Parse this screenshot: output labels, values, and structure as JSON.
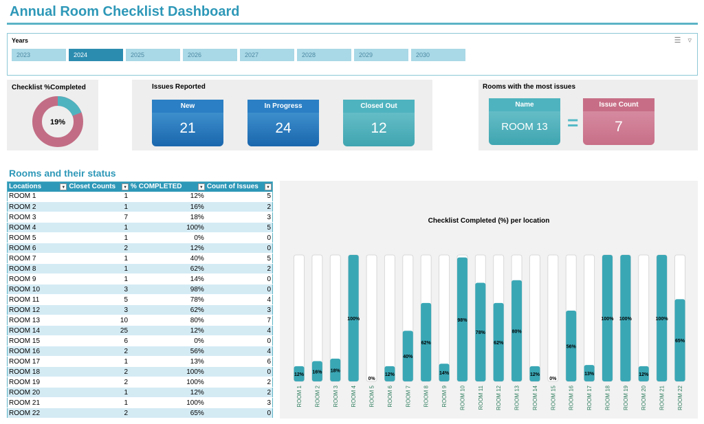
{
  "title": "Annual Room Checklist Dashboard",
  "slicer": {
    "title": "Years",
    "years": [
      "2023",
      "2024",
      "2025",
      "2026",
      "2027",
      "2028",
      "2029",
      "2030"
    ],
    "selected": "2024",
    "icons": [
      "multi-select-icon",
      "clear-filter-icon"
    ]
  },
  "checklist": {
    "title": "Checklist %Completed",
    "percent_label": "19%",
    "percent": 19,
    "colors": {
      "done": "#4fb3bf",
      "remaining": "#c26d85"
    }
  },
  "issues": {
    "title": "Issues Reported",
    "new_label": "New",
    "new_value": "21",
    "progress_label": "In Progress",
    "progress_value": "24",
    "closed_label": "Closed Out",
    "closed_value": "12"
  },
  "most_issues": {
    "title": "Rooms with the most issues",
    "name_label": "Name",
    "name_value": "ROOM 13",
    "equals": "=",
    "count_label": "Issue Count",
    "count_value": "7"
  },
  "table": {
    "title": "Rooms and their status",
    "headers": [
      "Locations",
      "Closet Counts",
      "% COMPLETED",
      "Count of Issues"
    ],
    "rows": [
      [
        "ROOM 1",
        "1",
        "12%",
        "5"
      ],
      [
        "ROOM 2",
        "1",
        "16%",
        "2"
      ],
      [
        "ROOM 3",
        "7",
        "18%",
        "3"
      ],
      [
        "ROOM 4",
        "1",
        "100%",
        "5"
      ],
      [
        "ROOM 5",
        "1",
        "0%",
        "0"
      ],
      [
        "ROOM 6",
        "2",
        "12%",
        "0"
      ],
      [
        "ROOM 7",
        "1",
        "40%",
        "5"
      ],
      [
        "ROOM 8",
        "1",
        "62%",
        "2"
      ],
      [
        "ROOM 9",
        "1",
        "14%",
        "0"
      ],
      [
        "ROOM 10",
        "3",
        "98%",
        "0"
      ],
      [
        "ROOM 11",
        "5",
        "78%",
        "4"
      ],
      [
        "ROOM 12",
        "3",
        "62%",
        "3"
      ],
      [
        "ROOM 13",
        "10",
        "80%",
        "7"
      ],
      [
        "ROOM 14",
        "25",
        "12%",
        "4"
      ],
      [
        "ROOM 15",
        "6",
        "0%",
        "0"
      ],
      [
        "ROOM 16",
        "2",
        "56%",
        "4"
      ],
      [
        "ROOM 17",
        "1",
        "13%",
        "6"
      ],
      [
        "ROOM 18",
        "2",
        "100%",
        "0"
      ],
      [
        "ROOM 19",
        "2",
        "100%",
        "2"
      ],
      [
        "ROOM 20",
        "1",
        "12%",
        "2"
      ],
      [
        "ROOM 21",
        "1",
        "100%",
        "3"
      ],
      [
        "ROOM 22",
        "2",
        "65%",
        "0"
      ]
    ]
  },
  "chart_data": {
    "type": "bar",
    "title": "Checklist Completed (%) per location",
    "categories": [
      "ROOM 1",
      "ROOM 2",
      "ROOM 3",
      "ROOM 4",
      "ROOM 5",
      "ROOM 6",
      "ROOM 7",
      "ROOM 8",
      "ROOM 9",
      "ROOM 10",
      "ROOM 11",
      "ROOM 12",
      "ROOM 13",
      "ROOM 14",
      "ROOM 15",
      "ROOM 16",
      "ROOM 17",
      "ROOM 18",
      "ROOM 19",
      "ROOM 20",
      "ROOM 21",
      "ROOM 22"
    ],
    "values": [
      12,
      16,
      18,
      100,
      0,
      12,
      40,
      62,
      14,
      98,
      78,
      62,
      80,
      12,
      0,
      56,
      13,
      100,
      100,
      12,
      100,
      65
    ],
    "labels": [
      "12%",
      "16%",
      "18%",
      "100%",
      "0%",
      "12%",
      "40%",
      "62%",
      "14%",
      "98%",
      "78%",
      "62%",
      "80%",
      "12%",
      "0%",
      "56%",
      "13%",
      "100%",
      "100%",
      "12%",
      "100%",
      "65%"
    ],
    "ylim": [
      0,
      100
    ],
    "colors": {
      "fill": "#3aa7b5",
      "track": "#ffffff"
    }
  }
}
